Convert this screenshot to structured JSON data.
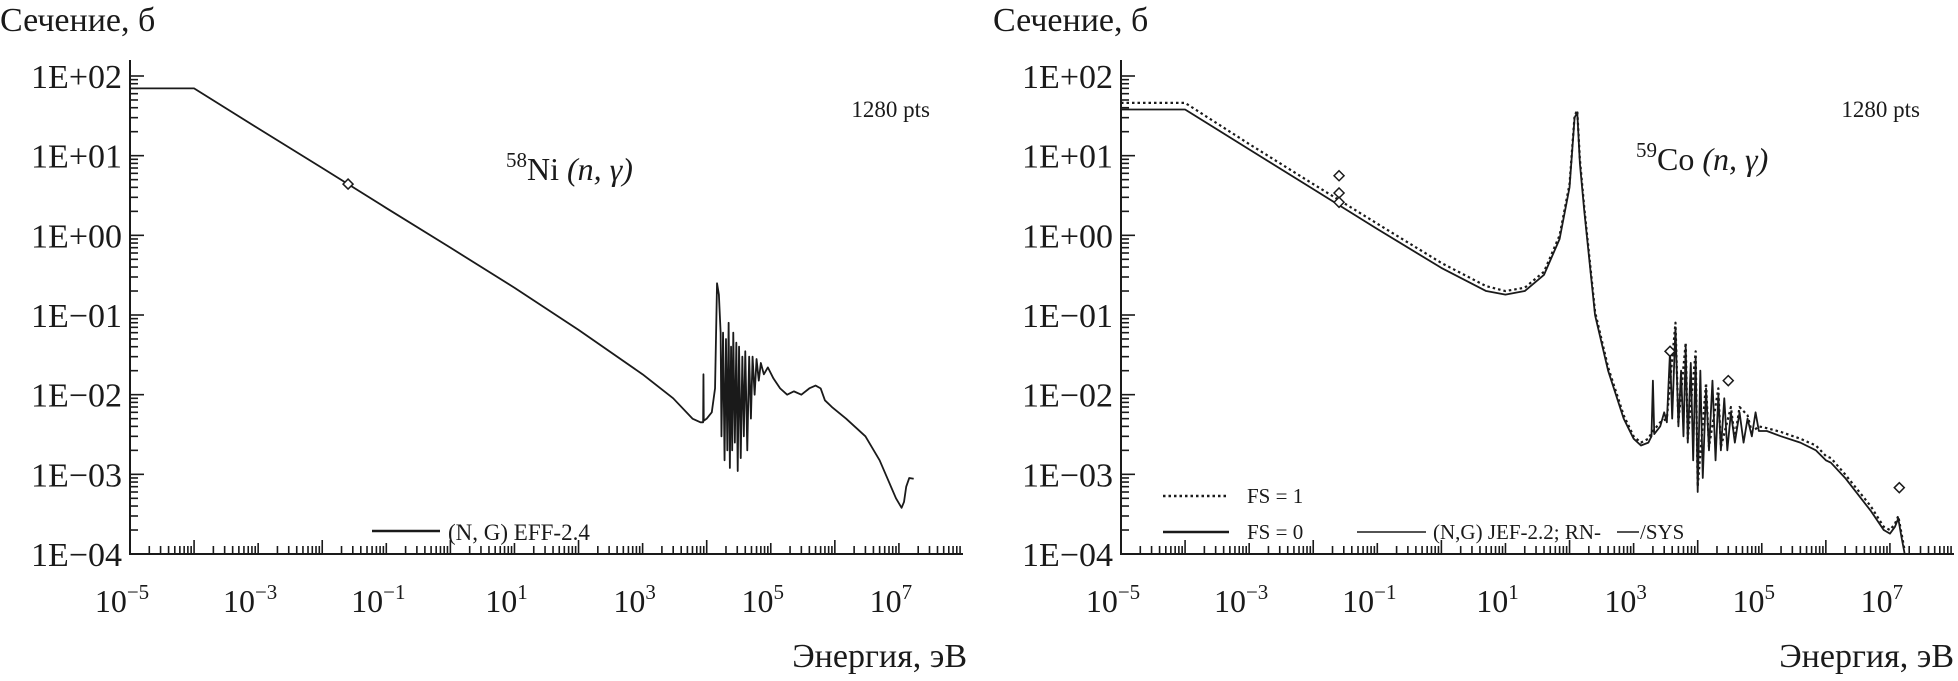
{
  "chart_data": [
    {
      "type": "line",
      "ylabel": "Сечение, б",
      "xlabel": "Энергия, эВ",
      "annotation_pts": "1280 pts",
      "title_mass": "58",
      "title_element": "Ni",
      "title_reaction": "(n, γ)",
      "xscale": "log",
      "yscale": "log",
      "xlim": [
        1e-05,
        100000000.0
      ],
      "ylim": [
        0.0001,
        100
      ],
      "x_tick_labels": [
        {
          "value": 1e-05,
          "base": "10",
          "exp": "−5"
        },
        {
          "value": 0.001,
          "base": "10",
          "exp": "−3"
        },
        {
          "value": 0.1,
          "base": "10",
          "exp": "−1"
        },
        {
          "value": 10.0,
          "base": "10",
          "exp": "1"
        },
        {
          "value": 1000.0,
          "base": "10",
          "exp": "3"
        },
        {
          "value": 100000.0,
          "base": "10",
          "exp": "5"
        },
        {
          "value": 10000000.0,
          "base": "10",
          "exp": "7"
        }
      ],
      "y_tick_labels": [
        {
          "value": 100,
          "label": "1E+02"
        },
        {
          "value": 10,
          "label": "1E+01"
        },
        {
          "value": 1,
          "label": "1E+00"
        },
        {
          "value": 0.1,
          "label": "1E−01"
        },
        {
          "value": 0.01,
          "label": "1E−02"
        },
        {
          "value": 0.001,
          "label": "1E−03"
        },
        {
          "value": 0.0001,
          "label": "1E−04"
        }
      ],
      "legend": [
        {
          "label": "(N, G) EFF-2.4",
          "style": "solid"
        }
      ],
      "legend_placement": "bottom-center",
      "series": [
        {
          "name": "(N, G) EFF-2.4",
          "style": "solid",
          "points": [
            [
              1e-05,
              70
            ],
            [
              0.0001,
              70
            ],
            [
              0.001,
              22
            ],
            [
              0.01,
              7
            ],
            [
              0.1,
              2.2
            ],
            [
              1,
              0.7
            ],
            [
              10,
              0.22
            ],
            [
              100,
              0.065
            ],
            [
              1000,
              0.018
            ],
            [
              3000,
              0.009
            ],
            [
              6000,
              0.005
            ],
            [
              8000,
              0.0045
            ],
            [
              8800,
              0.0045
            ],
            [
              8900,
              0.018
            ],
            [
              9000,
              0.0047
            ],
            [
              10000,
              0.005
            ],
            [
              12000,
              0.006
            ],
            [
              13500,
              0.012
            ],
            [
              14500,
              0.25
            ],
            [
              15500,
              0.18
            ],
            [
              16500,
              0.06
            ],
            [
              17000,
              0.003
            ],
            [
              18000,
              0.06
            ],
            [
              19000,
              0.0015
            ],
            [
              20000,
              0.05
            ],
            [
              21000,
              0.002
            ],
            [
              22000,
              0.08
            ],
            [
              23000,
              0.0012
            ],
            [
              24000,
              0.04
            ],
            [
              25000,
              0.002
            ],
            [
              26000,
              0.06
            ],
            [
              27500,
              0.0025
            ],
            [
              29000,
              0.045
            ],
            [
              30500,
              0.0011
            ],
            [
              32000,
              0.04
            ],
            [
              34000,
              0.0016
            ],
            [
              36000,
              0.03
            ],
            [
              38000,
              0.003
            ],
            [
              40000,
              0.035
            ],
            [
              43000,
              0.002
            ],
            [
              46000,
              0.03
            ],
            [
              49000,
              0.005
            ],
            [
              52000,
              0.03
            ],
            [
              56000,
              0.01
            ],
            [
              60000,
              0.028
            ],
            [
              65000,
              0.015
            ],
            [
              70000,
              0.025
            ],
            [
              78000,
              0.018
            ],
            [
              90000,
              0.022
            ],
            [
              110000,
              0.016
            ],
            [
              140000,
              0.012
            ],
            [
              180000,
              0.01
            ],
            [
              230000,
              0.011
            ],
            [
              300000,
              0.01
            ],
            [
              400000,
              0.012
            ],
            [
              500000,
              0.013
            ],
            [
              600000,
              0.012
            ],
            [
              700000,
              0.0085
            ],
            [
              900000,
              0.007
            ],
            [
              1500000,
              0.005
            ],
            [
              3000000,
              0.003
            ],
            [
              5000000,
              0.0015
            ],
            [
              7000000,
              0.0008
            ],
            [
              9000000,
              0.0005
            ],
            [
              11000000,
              0.00038
            ],
            [
              12000000,
              0.00045
            ],
            [
              13000000,
              0.0007
            ],
            [
              14500000,
              0.0009
            ],
            [
              17000000,
              0.00088
            ]
          ]
        }
      ],
      "markers": [
        {
          "shape": "diamond",
          "x": 0.0253,
          "y": 4.4
        }
      ]
    },
    {
      "type": "line",
      "ylabel": "Сечение, б",
      "xlabel": "Энергия, эВ",
      "annotation_pts": "1280 pts",
      "title_mass": "59",
      "title_element": "Co",
      "title_reaction": "(n, γ)",
      "xscale": "log",
      "yscale": "log",
      "xlim": [
        1e-05,
        100000000.0
      ],
      "ylim": [
        0.0001,
        100
      ],
      "x_tick_labels": [
        {
          "value": 1e-05,
          "base": "10",
          "exp": "−5"
        },
        {
          "value": 0.001,
          "base": "10",
          "exp": "−3"
        },
        {
          "value": 0.1,
          "base": "10",
          "exp": "−1"
        },
        {
          "value": 10.0,
          "base": "10",
          "exp": "1"
        },
        {
          "value": 1000.0,
          "base": "10",
          "exp": "3"
        },
        {
          "value": 100000.0,
          "base": "10",
          "exp": "5"
        },
        {
          "value": 10000000.0,
          "base": "10",
          "exp": "7"
        }
      ],
      "y_tick_labels": [
        {
          "value": 100,
          "label": "1E+02"
        },
        {
          "value": 10,
          "label": "1E+01"
        },
        {
          "value": 1,
          "label": "1E+00"
        },
        {
          "value": 0.1,
          "label": "1E−01"
        },
        {
          "value": 0.01,
          "label": "1E−02"
        },
        {
          "value": 0.001,
          "label": "1E−03"
        },
        {
          "value": 0.0001,
          "label": "1E−04"
        }
      ],
      "legend": [
        {
          "label": "FS = 1",
          "style": "dotted"
        },
        {
          "label": "FS = 0",
          "style": "solid"
        },
        {
          "label": "(N,G) JEF-2.2; RN-",
          "style": "thin"
        },
        {
          "label": "/SYS",
          "style": "thin"
        }
      ],
      "legend_placement": "bottom-left",
      "series": [
        {
          "name": "FS = 0",
          "style": "solid",
          "points": [
            [
              1e-05,
              38
            ],
            [
              0.0001,
              38
            ],
            [
              0.001,
              12
            ],
            [
              0.01,
              3.8
            ],
            [
              0.1,
              1.2
            ],
            [
              1,
              0.39
            ],
            [
              5,
              0.2
            ],
            [
              10,
              0.18
            ],
            [
              20,
              0.2
            ],
            [
              40,
              0.32
            ],
            [
              70,
              0.9
            ],
            [
              100,
              4
            ],
            [
              120,
              30
            ],
            [
              132,
              35
            ],
            [
              145,
              8
            ],
            [
              170,
              2
            ],
            [
              250,
              0.1
            ],
            [
              400,
              0.02
            ],
            [
              700,
              0.005
            ],
            [
              1000,
              0.0028
            ],
            [
              1300,
              0.0023
            ],
            [
              1700,
              0.0025
            ],
            [
              1900,
              0.003
            ],
            [
              2000,
              0.015
            ],
            [
              2100,
              0.0032
            ],
            [
              2600,
              0.004
            ],
            [
              3000,
              0.006
            ],
            [
              3300,
              0.0045
            ],
            [
              3700,
              0.035
            ],
            [
              4000,
              0.005
            ],
            [
              4500,
              0.07
            ],
            [
              5000,
              0.004
            ],
            [
              5500,
              0.02
            ],
            [
              6000,
              0.003
            ],
            [
              6500,
              0.04
            ],
            [
              7000,
              0.0025
            ],
            [
              7800,
              0.025
            ],
            [
              8500,
              0.0015
            ],
            [
              9300,
              0.03
            ],
            [
              10000,
              0.0006
            ],
            [
              11000,
              0.02
            ],
            [
              12000,
              0.0009
            ],
            [
              13500,
              0.012
            ],
            [
              15000,
              0.002
            ],
            [
              17000,
              0.015
            ],
            [
              19000,
              0.0015
            ],
            [
              21000,
              0.01
            ],
            [
              23000,
              0.002
            ],
            [
              26000,
              0.009
            ],
            [
              29000,
              0.002
            ],
            [
              33000,
              0.006
            ],
            [
              38000,
              0.0025
            ],
            [
              45000,
              0.006
            ],
            [
              52000,
              0.0025
            ],
            [
              60000,
              0.005
            ],
            [
              70000,
              0.003
            ],
            [
              80000,
              0.006
            ],
            [
              90000,
              0.0035
            ],
            [
              120000,
              0.0035
            ],
            [
              200000,
              0.003
            ],
            [
              400000,
              0.0025
            ],
            [
              700000,
              0.002
            ],
            [
              1000000,
              0.0015
            ],
            [
              1200000,
              0.0014
            ],
            [
              2000000,
              0.0009
            ],
            [
              5000000,
              0.00035
            ],
            [
              8000000,
              0.0002
            ],
            [
              10000000,
              0.00018
            ],
            [
              12000000,
              0.00022
            ],
            [
              13500000,
              0.00028
            ],
            [
              15000000,
              0.00017
            ],
            [
              17000000,
              0.0001
            ]
          ]
        },
        {
          "name": "FS = 1",
          "style": "dotted",
          "points": [
            [
              1e-05,
              46
            ],
            [
              0.0001,
              46
            ],
            [
              0.001,
              14
            ],
            [
              0.01,
              4.4
            ],
            [
              0.1,
              1.4
            ],
            [
              1,
              0.45
            ],
            [
              5,
              0.23
            ],
            [
              10,
              0.2
            ],
            [
              20,
              0.22
            ],
            [
              40,
              0.35
            ],
            [
              70,
              1
            ],
            [
              100,
              4.4
            ],
            [
              120,
              32
            ],
            [
              132,
              37
            ],
            [
              145,
              9
            ],
            [
              170,
              2.2
            ],
            [
              250,
              0.11
            ],
            [
              400,
              0.022
            ],
            [
              700,
              0.0055
            ],
            [
              1000,
              0.003
            ],
            [
              1300,
              0.0025
            ],
            [
              1700,
              0.0028
            ],
            [
              1900,
              0.0033
            ],
            [
              2600,
              0.0045
            ],
            [
              3300,
              0.005
            ],
            [
              4500,
              0.08
            ],
            [
              5000,
              0.0045
            ],
            [
              6500,
              0.045
            ],
            [
              7000,
              0.0028
            ],
            [
              9300,
              0.035
            ],
            [
              10000,
              0.0007
            ],
            [
              13500,
              0.014
            ],
            [
              15000,
              0.0022
            ],
            [
              21000,
              0.012
            ],
            [
              23000,
              0.0022
            ],
            [
              33000,
              0.007
            ],
            [
              38000,
              0.0028
            ],
            [
              45000,
              0.007
            ],
            [
              60000,
              0.0055
            ],
            [
              70000,
              0.0034
            ],
            [
              90000,
              0.004
            ],
            [
              120000,
              0.0038
            ],
            [
              200000,
              0.0034
            ],
            [
              400000,
              0.0028
            ],
            [
              700000,
              0.0023
            ],
            [
              1000000,
              0.0017
            ],
            [
              1200000,
              0.0016
            ],
            [
              2000000,
              0.001
            ],
            [
              5000000,
              0.0004
            ],
            [
              8000000,
              0.00022
            ],
            [
              10000000,
              0.0002
            ],
            [
              12000000,
              0.00024
            ],
            [
              13500000,
              0.0003
            ],
            [
              15000000,
              0.00019
            ],
            [
              17000000,
              0.00011
            ]
          ]
        }
      ],
      "markers": [
        {
          "shape": "diamond",
          "x": 0.0253,
          "y": 5.6
        },
        {
          "shape": "diamond",
          "x": 0.0253,
          "y": 3.4
        },
        {
          "shape": "diamond",
          "x": 0.0253,
          "y": 2.6
        },
        {
          "shape": "diamond",
          "x": 30000,
          "y": 0.015
        },
        {
          "shape": "diamond",
          "x": 3700,
          "y": 0.035
        },
        {
          "shape": "diamond",
          "x": 14000000,
          "y": 0.00068
        }
      ]
    }
  ]
}
